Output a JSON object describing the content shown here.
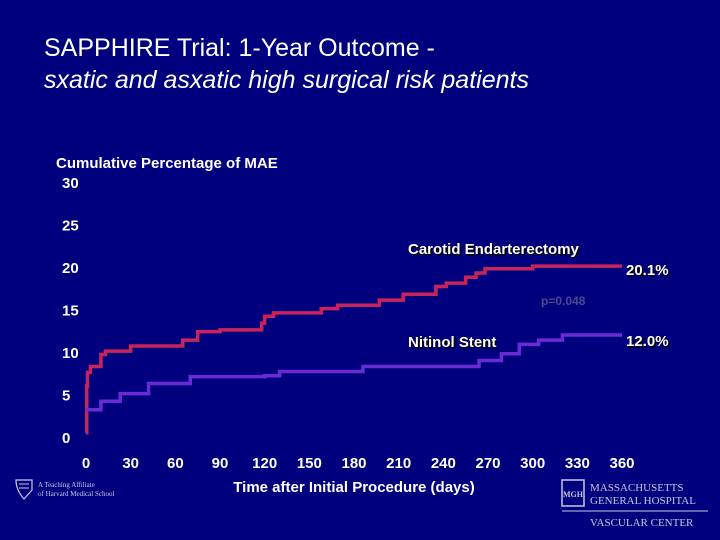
{
  "slide": {
    "title_line1": "SAPPHIRE Trial: 1-Year Outcome -",
    "title_line2": "sxatic and asxatic high surgical risk patients"
  },
  "chart_data": {
    "type": "line",
    "title": "",
    "ylabel": "Cumulative Percentage of MAE",
    "xlabel": "Time after Initial Procedure (days)",
    "xlim": [
      0,
      360
    ],
    "ylim": [
      0,
      30
    ],
    "xticks": [
      0,
      30,
      60,
      90,
      120,
      150,
      180,
      210,
      240,
      270,
      300,
      330,
      360
    ],
    "yticks": [
      0,
      5,
      10,
      15,
      20,
      25,
      30
    ],
    "series": [
      {
        "name": "Carotid Endarterectomy",
        "color": "#c8245a",
        "step": true,
        "end_label": "20.1%",
        "points": [
          [
            0,
            0.5
          ],
          [
            0.5,
            6
          ],
          [
            1,
            7.6
          ],
          [
            3,
            8.3
          ],
          [
            10,
            9.7
          ],
          [
            13,
            10.1
          ],
          [
            30,
            10.7
          ],
          [
            65,
            11.4
          ],
          [
            75,
            12.4
          ],
          [
            90,
            12.6
          ],
          [
            118,
            13.4
          ],
          [
            120,
            14.2
          ],
          [
            126,
            14.6
          ],
          [
            158,
            15.1
          ],
          [
            169,
            15.5
          ],
          [
            197,
            16.1
          ],
          [
            213,
            16.8
          ],
          [
            235,
            17.7
          ],
          [
            242,
            18.1
          ],
          [
            255,
            18.8
          ],
          [
            262,
            19.3
          ],
          [
            268,
            19.8
          ],
          [
            300,
            20.1
          ],
          [
            360,
            20.1
          ]
        ]
      },
      {
        "name": "Nitinol Stent",
        "color": "#6a2bd6",
        "step": true,
        "end_label": "12.0%",
        "points": [
          [
            0,
            3.2
          ],
          [
            10,
            4.2
          ],
          [
            23,
            5.1
          ],
          [
            42,
            6.3
          ],
          [
            70,
            7.1
          ],
          [
            120,
            7.2
          ],
          [
            130,
            7.7
          ],
          [
            186,
            8.3
          ],
          [
            255,
            8.3
          ],
          [
            264,
            9.0
          ],
          [
            279,
            9.8
          ],
          [
            291,
            10.9
          ],
          [
            304,
            11.4
          ],
          [
            320,
            12.0
          ],
          [
            360,
            12.0
          ]
        ]
      }
    ],
    "annotations": [
      {
        "text": "p=0.048"
      }
    ],
    "grid": false,
    "legend": "inline labels"
  },
  "logos": {
    "left_line1": "A Teaching Affiliate",
    "left_line2": "of Harvard Medical School",
    "right_line1": "MASSACHUSETTS",
    "right_line2": "GENERAL HOSPITAL",
    "right_line3": "VASCULAR CENTER"
  }
}
